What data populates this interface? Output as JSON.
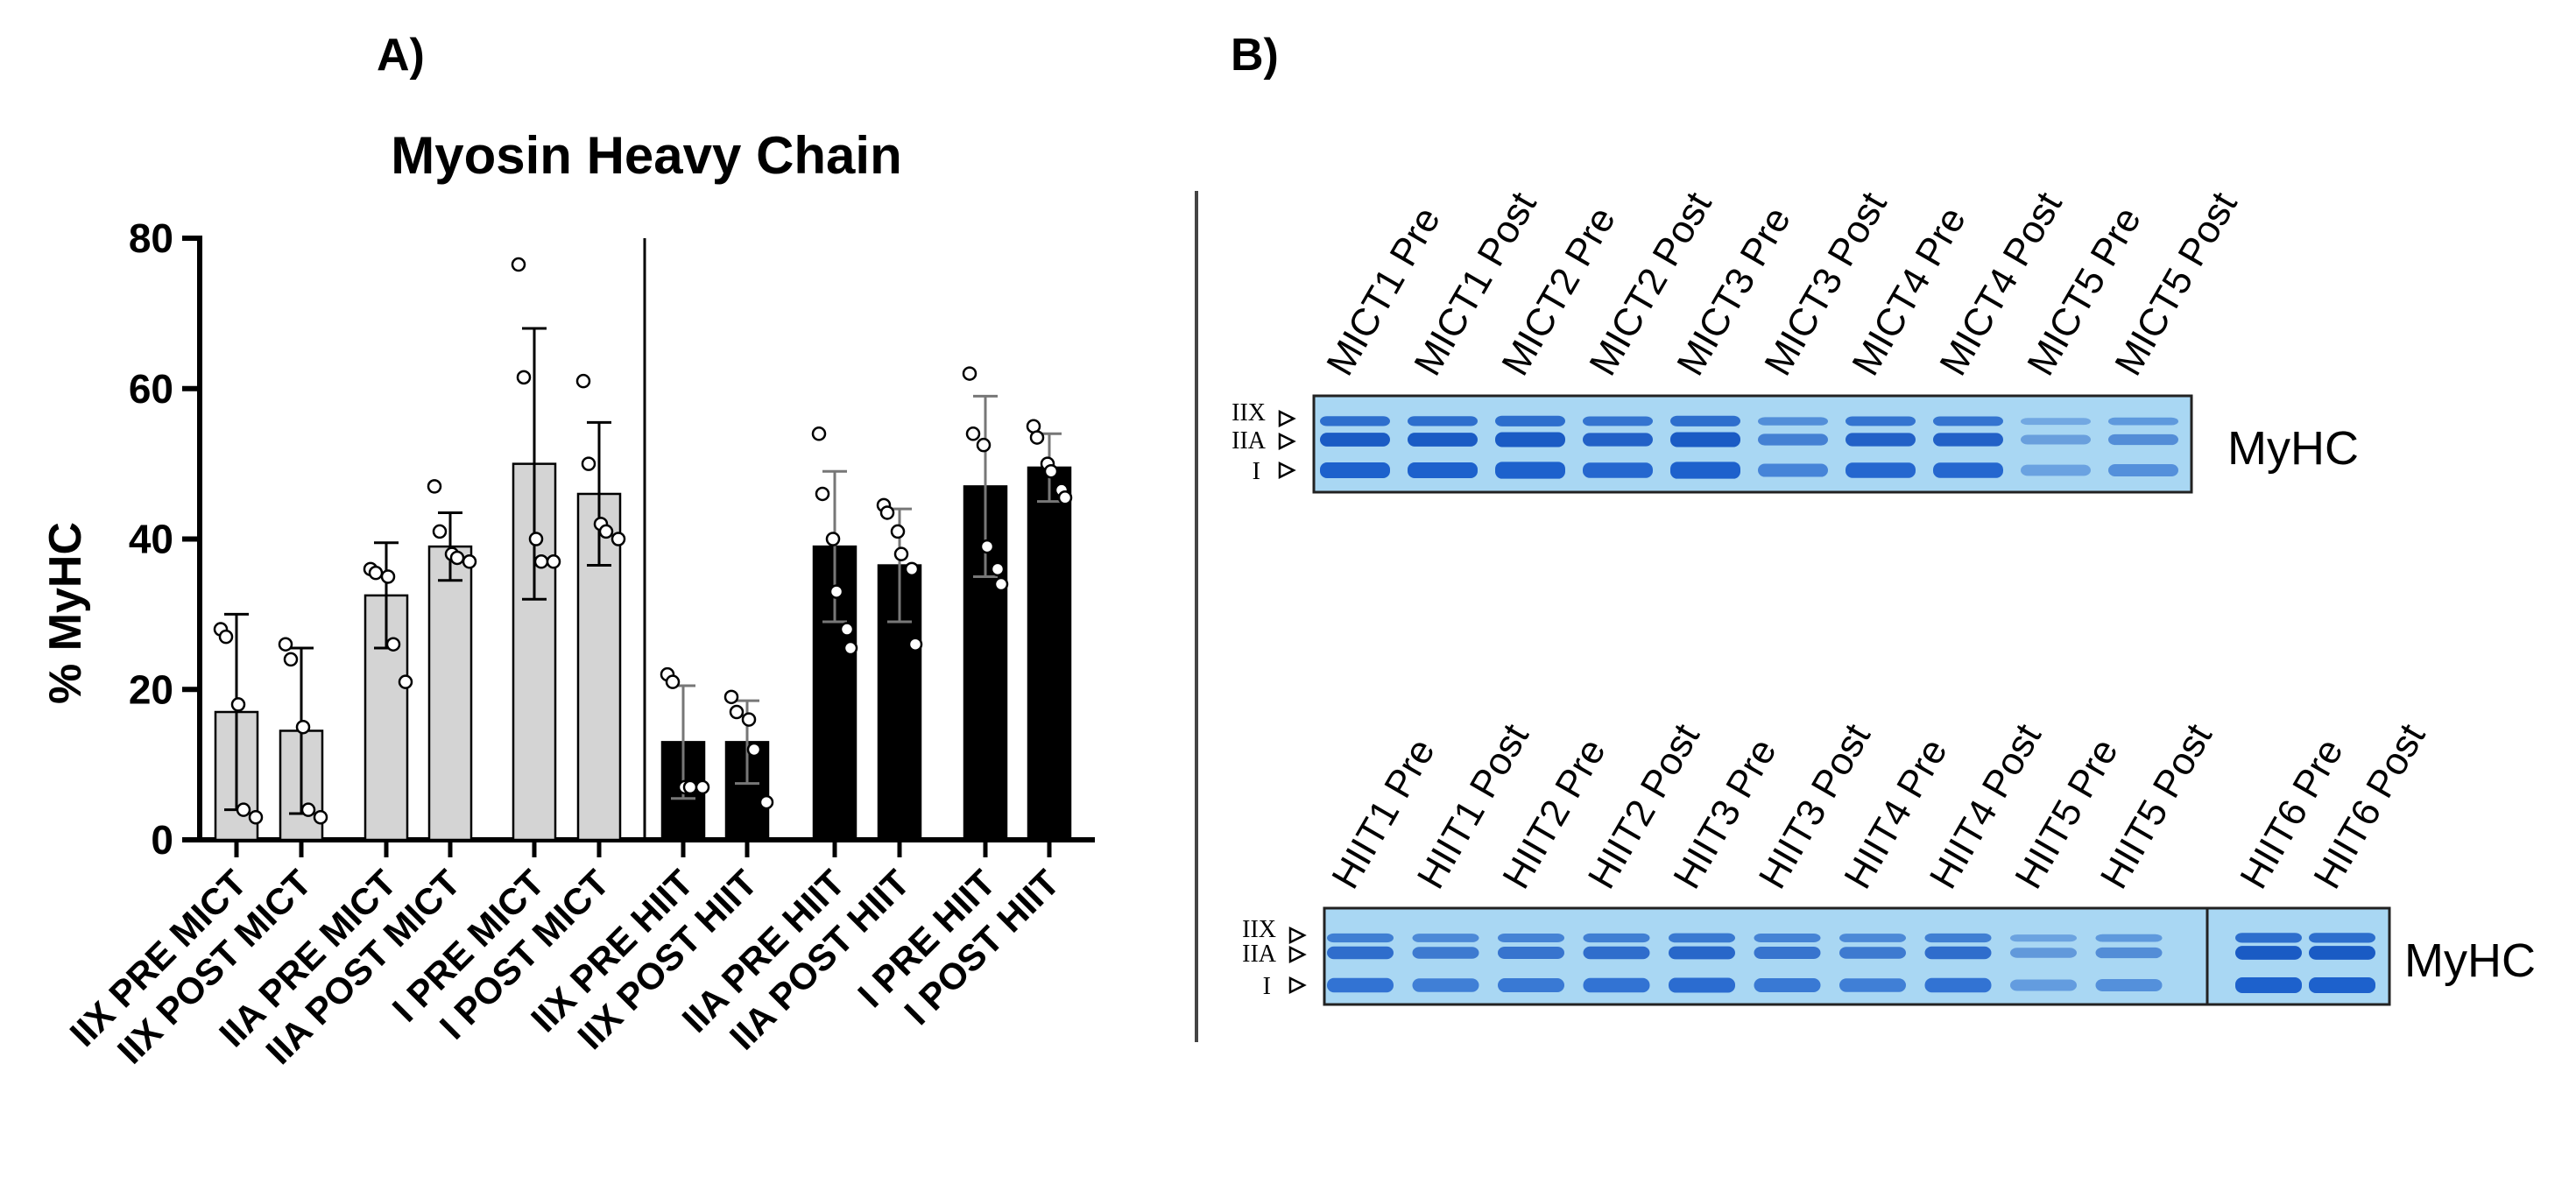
{
  "panel_a": {
    "label": "A)"
  },
  "panel_b": {
    "label": "B)",
    "markers": {
      "IIX": "IIX",
      "IIA": "IIA",
      "I": "I"
    },
    "gel_mict": {
      "lanes": [
        "MICT1 Pre",
        "MICT1 Post",
        "MICT2 Pre",
        "MICT2 Post",
        "MICT3 Pre",
        "MICT3 Post",
        "MICT4 Pre",
        "MICT4 Post",
        "MICT5 Pre",
        "MICT5 Post"
      ],
      "intensity": [
        1.0,
        1.0,
        1.15,
        0.95,
        1.15,
        0.7,
        0.95,
        0.95,
        0.45,
        0.6
      ],
      "label": "MyHC"
    },
    "gel_hiit": {
      "lanes": [
        "HIIT1 Pre",
        "HIIT1 Post",
        "HIIT2 Pre",
        "HIIT2 Post",
        "HIIT3 Pre",
        "HIIT3 Post",
        "HIIT4 Pre",
        "HIIT4 Post",
        "HIIT5 Pre",
        "HIIT5 Post",
        "HIIT6 Pre",
        "HIIT6 Post"
      ],
      "intensity": [
        0.85,
        0.75,
        0.8,
        0.85,
        0.9,
        0.8,
        0.75,
        0.85,
        0.5,
        0.6,
        1.0,
        1.0
      ],
      "label": "MyHC"
    }
  },
  "chart_data": {
    "type": "bar",
    "title": "Myosin Heavy Chain",
    "xlabel": "",
    "ylabel": "% MyHC",
    "ylim": [
      0,
      80
    ],
    "yticks": [
      0,
      20,
      40,
      60,
      80
    ],
    "grid": false,
    "categories": [
      "IIX PRE MICT",
      "IIX POST MICT",
      "IIA PRE MICT",
      "IIA POST MICT",
      "I PRE MICT",
      "I POST MICT",
      "IIX PRE HIIT",
      "IIX POST HIIT",
      "IIA PRE HIIT",
      "IIA POST HIIT",
      "I PRE HIIT",
      "I POST HIIT"
    ],
    "groups": [
      "MICT",
      "MICT",
      "MICT",
      "MICT",
      "MICT",
      "MICT",
      "HIIT",
      "HIIT",
      "HIIT",
      "HIIT",
      "HIIT",
      "HIIT"
    ],
    "values": [
      17,
      14.5,
      32.5,
      39,
      50,
      46,
      13,
      13,
      39,
      36.5,
      47,
      49.5
    ],
    "sd": [
      13,
      11,
      7,
      4.5,
      18,
      9.5,
      7.5,
      5.5,
      10,
      7.5,
      12,
      4.5
    ],
    "points": [
      [
        28,
        27,
        18,
        4,
        3
      ],
      [
        26,
        24,
        15,
        4,
        3
      ],
      [
        36,
        35.5,
        35,
        26,
        21
      ],
      [
        47,
        41,
        38,
        37.5,
        37
      ],
      [
        76.5,
        61.5,
        40,
        37,
        37
      ],
      [
        61,
        50,
        42,
        41,
        40
      ],
      [
        22,
        21,
        7,
        7,
        7
      ],
      [
        19,
        17,
        16,
        12,
        5
      ],
      [
        54,
        46,
        40,
        33,
        28,
        25.5
      ],
      [
        44.5,
        43.5,
        41,
        38,
        36,
        26
      ],
      [
        62,
        54,
        52.5,
        39,
        36,
        34
      ],
      [
        55,
        53.5,
        50,
        49,
        46.5,
        45.5
      ]
    ],
    "colors": {
      "MICT": "#d4d4d4",
      "HIIT": "#000000"
    }
  }
}
